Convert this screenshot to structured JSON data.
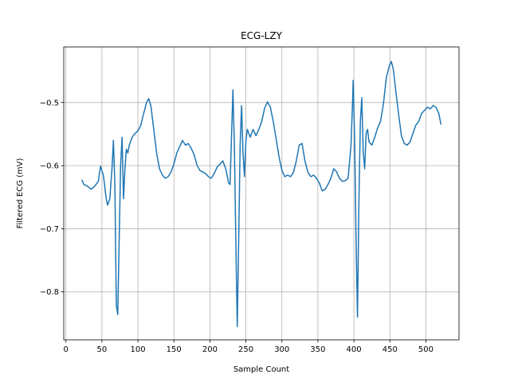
{
  "chart_data": {
    "type": "line",
    "title": "ECG-LZY",
    "x_label": "Sample Count",
    "y_label": "Filtered ECG (mV)",
    "x": [
      22,
      25,
      30,
      35,
      40,
      45,
      48,
      52,
      56,
      58,
      61,
      64,
      66,
      68,
      70,
      72,
      74,
      76,
      78,
      80,
      82,
      84,
      86,
      88,
      92,
      96,
      100,
      104,
      108,
      112,
      115,
      118,
      122,
      126,
      130,
      134,
      138,
      142,
      146,
      150,
      154,
      158,
      162,
      166,
      170,
      174,
      178,
      182,
      186,
      190,
      194,
      198,
      202,
      206,
      210,
      214,
      218,
      222,
      226,
      228,
      230,
      232,
      234,
      236,
      238,
      240,
      242,
      244,
      246,
      248,
      250,
      252,
      254,
      256,
      260,
      264,
      268,
      272,
      276,
      280,
      284,
      288,
      292,
      296,
      300,
      304,
      308,
      312,
      316,
      320,
      324,
      328,
      332,
      336,
      340,
      344,
      348,
      352,
      356,
      360,
      364,
      368,
      372,
      376,
      380,
      384,
      388,
      392,
      396,
      398,
      399,
      401,
      403,
      405,
      407,
      409,
      411,
      413,
      415,
      417,
      419,
      421,
      425,
      429,
      433,
      437,
      441,
      445,
      449,
      452,
      455,
      458,
      462,
      466,
      470,
      474,
      478,
      482,
      486,
      490,
      494,
      498,
      502,
      506,
      510,
      514,
      518,
      521
    ],
    "series": [
      {
        "name": "Filtered ECG",
        "color": "#1f77b4",
        "values": [
          -0.6225,
          -0.63,
          -0.6325,
          -0.6375,
          -0.6325,
          -0.625,
          -0.601,
          -0.615,
          -0.6525,
          -0.6625,
          -0.6525,
          -0.605,
          -0.56,
          -0.63,
          -0.82,
          -0.836,
          -0.7175,
          -0.599,
          -0.555,
          -0.6525,
          -0.605,
          -0.574,
          -0.58,
          -0.5675,
          -0.555,
          -0.549,
          -0.545,
          -0.536,
          -0.5175,
          -0.5,
          -0.494,
          -0.505,
          -0.5425,
          -0.58,
          -0.605,
          -0.615,
          -0.62,
          -0.6175,
          -0.61,
          -0.5975,
          -0.58,
          -0.57,
          -0.56,
          -0.5675,
          -0.565,
          -0.5725,
          -0.5825,
          -0.599,
          -0.6075,
          -0.61,
          -0.6125,
          -0.6175,
          -0.62,
          -0.6125,
          -0.6025,
          -0.5975,
          -0.5925,
          -0.605,
          -0.6275,
          -0.63,
          -0.555,
          -0.48,
          -0.5675,
          -0.7175,
          -0.855,
          -0.7175,
          -0.5675,
          -0.505,
          -0.58,
          -0.6175,
          -0.561,
          -0.5425,
          -0.549,
          -0.555,
          -0.5425,
          -0.5525,
          -0.5425,
          -0.53,
          -0.509,
          -0.499,
          -0.5075,
          -0.53,
          -0.5575,
          -0.586,
          -0.6075,
          -0.6175,
          -0.615,
          -0.6175,
          -0.611,
          -0.5925,
          -0.5675,
          -0.565,
          -0.5925,
          -0.61,
          -0.6175,
          -0.615,
          -0.62,
          -0.6275,
          -0.64,
          -0.6375,
          -0.63,
          -0.62,
          -0.605,
          -0.61,
          -0.62,
          -0.625,
          -0.624,
          -0.62,
          -0.5675,
          -0.505,
          -0.465,
          -0.555,
          -0.7175,
          -0.84,
          -0.655,
          -0.53,
          -0.4925,
          -0.58,
          -0.605,
          -0.549,
          -0.5425,
          -0.5625,
          -0.5675,
          -0.555,
          -0.54,
          -0.53,
          -0.5025,
          -0.461,
          -0.4425,
          -0.435,
          -0.449,
          -0.48,
          -0.5175,
          -0.5525,
          -0.565,
          -0.5675,
          -0.5625,
          -0.549,
          -0.536,
          -0.53,
          -0.5175,
          -0.5125,
          -0.5075,
          -0.51,
          -0.505,
          -0.5075,
          -0.5175,
          -0.535
        ]
      }
    ],
    "xlim": [
      -3,
      546
    ],
    "xticks": [
      0,
      50,
      100,
      150,
      200,
      250,
      300,
      350,
      400,
      450,
      500
    ],
    "ylim": [
      -0.876,
      -0.412
    ],
    "yticks": [
      {
        "value": -0.8,
        "label": "−0.8"
      },
      {
        "value": -0.7,
        "label": "−0.7"
      },
      {
        "value": -0.6,
        "label": "−0.6"
      },
      {
        "value": -0.5,
        "label": "−0.5"
      }
    ],
    "grid": true
  }
}
